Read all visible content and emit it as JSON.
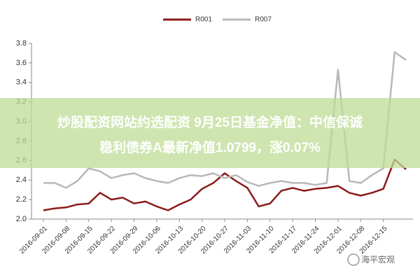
{
  "chart_data": {
    "type": "line",
    "categories": [
      "2016-09-01",
      null,
      "2016-09-08",
      null,
      "2016-09-15",
      null,
      "2016-09-22",
      null,
      "2016-09-29",
      null,
      "2016-10-06",
      null,
      "2016-10-13",
      null,
      "2016-10-20",
      null,
      "2016-10-27",
      null,
      "2016-11-03",
      null,
      "2016-11-10",
      null,
      "2016-11-17",
      null,
      "2016-11-24",
      null,
      "2016-12-01",
      null,
      "2016-12-08",
      null,
      "2016-12-15",
      null,
      null
    ],
    "series": [
      {
        "name": "R001",
        "color": "#8b1a1a",
        "values": [
          2.09,
          2.11,
          2.12,
          2.15,
          2.16,
          2.27,
          2.2,
          2.22,
          2.16,
          2.18,
          2.13,
          2.09,
          2.15,
          2.2,
          2.31,
          2.37,
          2.47,
          2.39,
          2.32,
          2.13,
          2.16,
          2.29,
          2.32,
          2.29,
          2.31,
          2.32,
          2.34,
          2.27,
          2.24,
          2.27,
          2.31,
          2.61,
          2.51
        ]
      },
      {
        "name": "R007",
        "color": "#b8b8b8",
        "values": [
          2.37,
          2.37,
          2.32,
          2.39,
          2.52,
          2.49,
          2.42,
          2.45,
          2.47,
          2.42,
          2.39,
          2.37,
          2.42,
          2.45,
          2.44,
          2.47,
          2.42,
          2.45,
          2.38,
          2.34,
          2.37,
          2.39,
          2.37,
          2.37,
          2.35,
          2.37,
          3.53,
          2.39,
          2.37,
          2.45,
          2.52,
          3.71,
          3.63
        ]
      }
    ],
    "ylim": [
      2,
      3.8
    ],
    "yticks": [
      {
        "value": 2,
        "label": "2.0"
      },
      2.2,
      2.4,
      2.6,
      2.8,
      {
        "value": 3,
        "label": "3.0"
      },
      3.2,
      3.4,
      3.6,
      3.8
    ],
    "legend": "top"
  },
  "overlay": {
    "lines": [
      "炒股配资网站约选配资 9月25日基金净值：中信保诚",
      "稳利债券A最新净值1.0799，涨0.07%"
    ]
  },
  "watermark": "海平宏观"
}
